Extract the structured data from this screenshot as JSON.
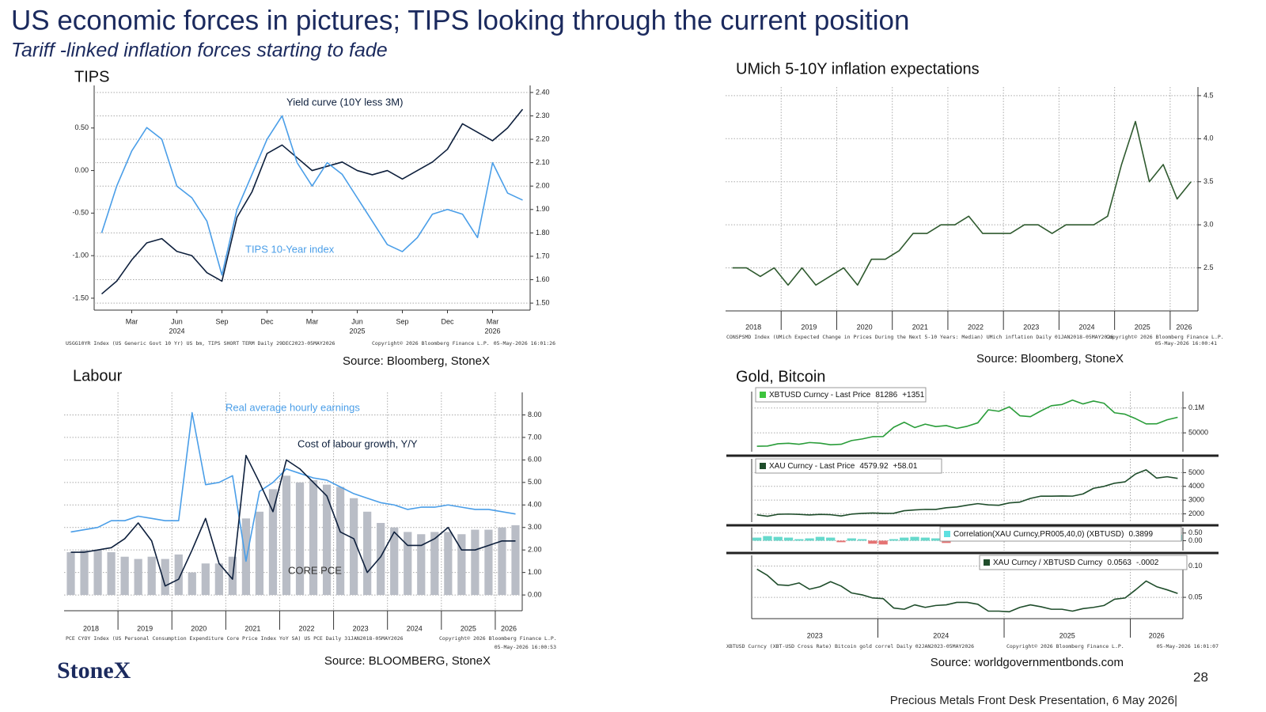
{
  "slide": {
    "title": "US  economic forces in pictures; TIPS looking through the current position",
    "subtitle": "Tariff -linked inflation forces starting to fade",
    "logo": "StoneX",
    "page": "28",
    "footer": "Precious Metals Front Desk Presentation, 6 May 2026|"
  },
  "chart_data": [
    {
      "type": "line",
      "title": "TIPS",
      "categories": [
        null,
        null,
        "Mar",
        null,
        null,
        "Jun",
        null,
        null,
        "Sep",
        null,
        null,
        "Dec",
        null,
        null,
        "Mar",
        null,
        null,
        "Jun",
        null,
        null,
        "Sep",
        null,
        null,
        "Dec",
        null,
        null,
        "Mar",
        null,
        null
      ],
      "year_categories": [
        null,
        null,
        null,
        null,
        null,
        "2024",
        null,
        null,
        null,
        null,
        null,
        null,
        null,
        null,
        null,
        null,
        null,
        "2025",
        null,
        null,
        null,
        null,
        null,
        null,
        null,
        null,
        "2026",
        null,
        null
      ],
      "series": [
        {
          "name": "Yield curve (10Y less 3M)",
          "color": "#0d1f3c",
          "values": [
            -1.45,
            -1.3,
            -1.05,
            -0.85,
            -0.8,
            -0.95,
            -1.0,
            -1.2,
            -1.3,
            -0.55,
            -0.25,
            0.2,
            0.3,
            0.15,
            0.0,
            0.05,
            0.1,
            0.0,
            -0.05,
            0.0,
            -0.1,
            0.0,
            0.1,
            0.25,
            0.55,
            0.45,
            0.35,
            0.5,
            0.72
          ]
        },
        {
          "name": "TIPS 10-Year index",
          "color": "#4a9ee8",
          "axis": "y2",
          "values": [
            1.8,
            2.0,
            2.15,
            2.25,
            2.2,
            2.0,
            1.95,
            1.85,
            1.62,
            1.9,
            2.05,
            2.2,
            2.3,
            2.1,
            2.0,
            2.1,
            2.05,
            1.95,
            1.85,
            1.75,
            1.72,
            1.78,
            1.88,
            1.9,
            1.88,
            1.78,
            2.1,
            1.97,
            1.94
          ]
        }
      ],
      "ylim": [
        -1.64,
        1.0
      ],
      "yticks": [
        {
          "value": -1.5,
          "label": "-1.50"
        },
        {
          "value": -1,
          "label": "-1.00"
        },
        {
          "value": -0.5,
          "label": "-0.50"
        },
        {
          "value": 0,
          "label": "0.00"
        },
        {
          "value": 0.5,
          "label": "0.50"
        }
      ],
      "y2lim": [
        1.47,
        2.43
      ],
      "y2ticks": [
        {
          "value": 1.5,
          "label": "1.50"
        },
        {
          "value": 1.6,
          "label": "1.60"
        },
        {
          "value": 1.7,
          "label": "1.70"
        },
        {
          "value": 1.8,
          "label": "1.80"
        },
        {
          "value": 1.9,
          "label": "1.90"
        },
        {
          "value": 2.0,
          "label": "2.00"
        },
        {
          "value": 2.1,
          "label": "2.10"
        },
        {
          "value": 2.2,
          "label": "2.20"
        },
        {
          "value": 2.3,
          "label": "2.30"
        },
        {
          "value": 2.4,
          "label": "2.40"
        }
      ],
      "grid": true,
      "footnote": [
        "USGG10YR Index (US Generic Govt 10 Yr) US bm, TIPS SHORT TERM Daily 29DEC2023-05MAY2026",
        "Copyright© 2026 Bloomberg Finance L.P.",
        "05-May-2026 16:01:26"
      ],
      "source": "Source: Bloomberg, StoneX"
    },
    {
      "type": "line",
      "title": "UMich 5-10Y inflation expectations",
      "categories": [
        "2018",
        null,
        null,
        null,
        "2019",
        null,
        null,
        null,
        "2020",
        null,
        null,
        null,
        "2021",
        null,
        null,
        null,
        "2022",
        null,
        null,
        null,
        "2023",
        null,
        null,
        null,
        "2024",
        null,
        null,
        null,
        "2025",
        null,
        null,
        null,
        "2026",
        null
      ],
      "series": [
        {
          "color": "#2f5a2f",
          "values": [
            2.5,
            2.5,
            2.4,
            2.5,
            2.3,
            2.5,
            2.3,
            2.4,
            2.5,
            2.3,
            2.6,
            2.6,
            2.7,
            2.9,
            2.9,
            3.0,
            3.0,
            3.1,
            2.9,
            2.9,
            2.9,
            3.0,
            3.0,
            2.9,
            3.0,
            3.0,
            3.0,
            3.1,
            3.7,
            4.2,
            3.5,
            3.7,
            3.3,
            3.5
          ]
        }
      ],
      "ylim": [
        2.0,
        4.6
      ],
      "yticks": [
        2.5,
        {
          "value": 3,
          "label": "3.0"
        },
        3.5,
        {
          "value": 4,
          "label": "4.0"
        },
        4.5
      ],
      "grid": true,
      "footnote": [
        "CONSPSMD Index (UMich Expected Change in Prices During the Next 5-10 Years: Median) UMich inflation Daily 01JAN2018-05MAY2026",
        "Copyright© 2026 Bloomberg Finance L.P.",
        "05-May-2026 16:00:41"
      ],
      "source": "Source: Bloomberg, StoneX"
    },
    {
      "type": "combo",
      "title": "Labour",
      "categories": [
        "2018",
        null,
        null,
        null,
        "2019",
        null,
        null,
        null,
        "2020",
        null,
        null,
        null,
        "2021",
        null,
        null,
        null,
        "2022",
        null,
        null,
        null,
        "2023",
        null,
        null,
        null,
        "2024",
        null,
        null,
        null,
        "2025",
        null,
        null,
        null,
        "2026",
        null
      ],
      "series": [
        {
          "name": "Real average hourly earnings",
          "color": "#4a9ee8",
          "values": [
            2.8,
            2.9,
            3.0,
            3.3,
            3.3,
            3.5,
            3.4,
            3.3,
            3.3,
            8.1,
            4.9,
            5.0,
            5.3,
            1.5,
            4.6,
            5.0,
            5.6,
            5.4,
            5.2,
            5.1,
            4.8,
            4.5,
            4.3,
            4.1,
            4.0,
            3.8,
            3.9,
            3.9,
            4.0,
            3.9,
            3.8,
            3.8,
            3.7,
            3.6
          ]
        },
        {
          "name": "Cost of labour growth, Y/Y",
          "color": "#0d1f3c",
          "values": [
            1.9,
            1.9,
            2.0,
            2.1,
            2.5,
            3.2,
            2.4,
            0.4,
            0.7,
            2.0,
            3.4,
            1.4,
            0.7,
            6.2,
            5.0,
            3.7,
            6.0,
            5.6,
            5.0,
            4.4,
            2.8,
            2.5,
            1.0,
            1.7,
            2.8,
            2.2,
            2.2,
            2.5,
            3.0,
            2.0,
            2.0,
            2.2,
            2.4,
            2.4
          ]
        },
        {
          "name": "CORE PCE",
          "color": "#b9bdc6",
          "type": "bar",
          "values": [
            1.9,
            2.0,
            2.0,
            1.9,
            1.7,
            1.6,
            1.7,
            1.6,
            1.8,
            1.0,
            1.4,
            1.4,
            1.7,
            3.4,
            3.7,
            4.7,
            5.3,
            5.0,
            5.1,
            4.9,
            4.8,
            4.3,
            3.7,
            3.2,
            3.0,
            2.8,
            2.7,
            2.8,
            2.8,
            2.7,
            2.9,
            2.9,
            3.0,
            3.1
          ]
        }
      ],
      "ylim": [
        -0.7,
        9.0
      ],
      "yticks": [
        {
          "value": 0,
          "label": "0.00"
        },
        {
          "value": 1,
          "label": "1.00"
        },
        {
          "value": 2,
          "label": "2.00"
        },
        {
          "value": 3,
          "label": "3.00"
        },
        {
          "value": 4,
          "label": "4.00"
        },
        {
          "value": 5,
          "label": "5.00"
        },
        {
          "value": 6,
          "label": "6.00"
        },
        {
          "value": 7,
          "label": "7.00"
        },
        {
          "value": 8,
          "label": "8.00"
        }
      ],
      "grid": true,
      "footnote": [
        "PCE CYOY Index (US Personal Consumption Expenditure Core Price Index YoY SA) US PCE Daily 31JAN2018-05MAY2026",
        "Copyright© 2026 Bloomberg Finance L.P.",
        "05-May-2026 16:00:53"
      ],
      "source": "Source: BLOOMBERG, StoneX"
    },
    {
      "type": "line",
      "title": "Gold, Bitcoin",
      "series": [
        {
          "name": "XBTUSD Curncy - Last Price",
          "color": "#2a9d3a",
          "last": 81286,
          "change": "+1351",
          "values": [
            23000,
            23500,
            28000,
            29000,
            27000,
            30500,
            29200,
            26000,
            27000,
            34500,
            37700,
            42300,
            42600,
            61200,
            71300,
            60600,
            67500,
            62700,
            64600,
            59000,
            63300,
            70200,
            96400,
            93400,
            102400,
            84400,
            82500,
            94200,
            104600,
            107100,
            115800,
            108200,
            114000,
            109500,
            90400,
            87500,
            78600,
            68000,
            68200,
            76300,
            81286
          ]
        }
      ],
      "ylim": [
        12000,
        133000
      ],
      "yticks": [
        50000,
        {
          "value": 100000,
          "label": "0.1M"
        }
      ],
      "grid": true
    },
    {
      "type": "line",
      "series": [
        {
          "name": "XAU Curncy - Last Price",
          "color": "#1f4d2b",
          "last": 4579.92,
          "change": "+58.01",
          "values": [
            1928,
            1827,
            1969,
            1990,
            1962,
            1919,
            1965,
            1940,
            1849,
            1983,
            2036,
            2063,
            2039,
            2044,
            2230,
            2286,
            2327,
            2326,
            2447,
            2503,
            2634,
            2744,
            2653,
            2624,
            2798,
            2858,
            3123,
            3289,
            3289,
            3303,
            3290,
            3448,
            3858,
            4000,
            4230,
            4330,
            4900,
            5200,
            4600,
            4700,
            4579.92
          ]
        }
      ],
      "ylim": [
        1400,
        6000
      ],
      "yticks": [
        2000,
        3000,
        4000,
        5000
      ],
      "grid": true
    },
    {
      "type": "bar",
      "negative_color": "#e57373",
      "series": [
        {
          "name": "Correlation(XAU Curncy,PR005,40,0) (XBTUSD)",
          "color": "#66d9cc",
          "last": 0.3899,
          "values": [
            0.2,
            0.3,
            0.25,
            0.2,
            0.1,
            0.15,
            0.25,
            0.2,
            -0.1,
            0.15,
            0.1,
            -0.2,
            -0.25,
            0.1,
            0.2,
            0.25,
            0.2,
            0.15,
            -0.15,
            0.25,
            0.3,
            0.2,
            0.25,
            0.3,
            0.2,
            0.1,
            0.15,
            0.25,
            0.3,
            0.3,
            0.25,
            0.2,
            0.3,
            0.25,
            0.3,
            0.2,
            0.25,
            0.3,
            0.3,
            0.35,
            0.3899
          ]
        }
      ],
      "ylim": [
        -0.65,
        0.85
      ],
      "yticks": [
        {
          "value": 0,
          "label": "0.00"
        },
        {
          "value": 0.5,
          "label": "0.50"
        }
      ],
      "grid": true
    },
    {
      "type": "line",
      "categories": [
        "2023",
        null,
        null,
        null,
        null,
        null,
        null,
        null,
        null,
        null,
        null,
        null,
        "2024",
        null,
        null,
        null,
        null,
        null,
        null,
        null,
        null,
        null,
        null,
        null,
        "2025",
        null,
        null,
        null,
        null,
        null,
        null,
        null,
        null,
        null,
        null,
        null,
        "2026",
        null,
        null,
        null,
        null
      ],
      "series": [
        {
          "name": "XAU Curncy / XBTUSD Curncy",
          "color": "#1f4d2b",
          "last": 0.0563,
          "change": "-.0002",
          "values": [
            0.095,
            0.085,
            0.07,
            0.069,
            0.073,
            0.063,
            0.067,
            0.075,
            0.068,
            0.057,
            0.054,
            0.049,
            0.048,
            0.033,
            0.031,
            0.038,
            0.034,
            0.037,
            0.038,
            0.042,
            0.042,
            0.039,
            0.028,
            0.028,
            0.027,
            0.034,
            0.038,
            0.035,
            0.031,
            0.031,
            0.028,
            0.032,
            0.034,
            0.037,
            0.047,
            0.049,
            0.062,
            0.076,
            0.067,
            0.062,
            0.0563
          ]
        }
      ],
      "ylim": [
        0.016,
        0.117
      ],
      "yticks": [
        0.05,
        {
          "value": 0.1,
          "label": "0.10"
        }
      ],
      "grid": true,
      "footnote": [
        "XBTUSD Curncy (XBT-USD Cross Rate) Bitcoin gold correl Daily 02JAN2023-05MAY2026",
        "Copyright© 2026 Bloomberg Finance L.P.",
        "05-May-2026 16:01:07"
      ],
      "source": "Source: worldgovernmentbonds.com"
    }
  ]
}
